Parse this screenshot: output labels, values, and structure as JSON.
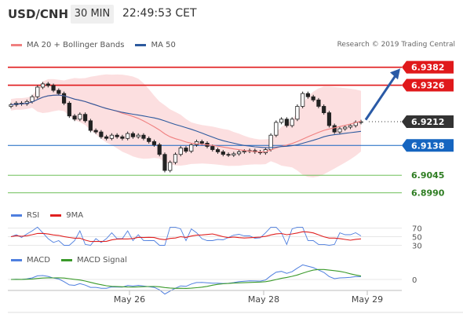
{
  "header": {
    "pair": "USD/CNH",
    "timeframe": "30 MIN",
    "time": "22:49:53 CET"
  },
  "main_legend": {
    "ma20_label": "MA 20 + Bollinger Bands",
    "ma50_label": "MA 50",
    "ma20_color": "#f08080",
    "ma50_color": "#2d5a9e"
  },
  "research_label": "Research © 2019 Trading Central",
  "rsi_legend": {
    "rsi_label": "RSI",
    "ma_label": "9MA",
    "rsi_color": "#4f7fdf",
    "ma_color": "#e02020"
  },
  "macd_legend": {
    "macd_label": "MACD",
    "signal_label": "MACD Signal",
    "macd_color": "#4f7fdf",
    "signal_color": "#3a9a2a"
  },
  "chart_data": {
    "type": "candlestick",
    "y_range": [
      6.895,
      6.944
    ],
    "price_levels": [
      {
        "value": 6.9382,
        "label": "6.9382",
        "kind": "resistance",
        "color": "#e0191b"
      },
      {
        "value": 6.9326,
        "label": "6.9326",
        "kind": "resistance",
        "color": "#e0191b"
      },
      {
        "value": 6.9212,
        "label": "6.9212",
        "kind": "last",
        "color": "#333333"
      },
      {
        "value": 6.9138,
        "label": "6.9138",
        "kind": "pivot",
        "color": "#1565c0"
      },
      {
        "value": 6.9045,
        "label": "6.9045",
        "kind": "support",
        "color": "#3a9a2a"
      },
      {
        "value": 6.899,
        "label": "6.8990",
        "kind": "support",
        "color": "#3a9a2a"
      }
    ],
    "x_ticks": [
      "May 26",
      "May 28",
      "May 29"
    ],
    "rsi_ticks": [
      "70",
      "50",
      "30"
    ],
    "macd_ticks": [
      "0"
    ],
    "close_series": [
      6.9265,
      6.927,
      6.9268,
      6.9275,
      6.929,
      6.932,
      6.933,
      6.9325,
      6.931,
      6.93,
      6.927,
      6.923,
      6.922,
      6.9235,
      6.9215,
      6.9185,
      6.918,
      6.9165,
      6.916,
      6.917,
      6.9165,
      6.916,
      6.9175,
      6.9165,
      6.917,
      6.916,
      6.915,
      6.914,
      6.911,
      6.906,
      6.9085,
      6.911,
      6.913,
      6.912,
      6.914,
      6.915,
      6.9145,
      6.9135,
      6.9125,
      6.9118,
      6.911,
      6.9108,
      6.9112,
      6.9118,
      6.912,
      6.9122,
      6.9118,
      6.9115,
      6.9125,
      6.917,
      6.921,
      6.922,
      6.92,
      6.922,
      6.926,
      6.93,
      6.929,
      6.928,
      6.926,
      6.924,
      6.92,
      6.918,
      6.919,
      6.9195,
      6.92,
      6.921,
      6.9212
    ]
  }
}
